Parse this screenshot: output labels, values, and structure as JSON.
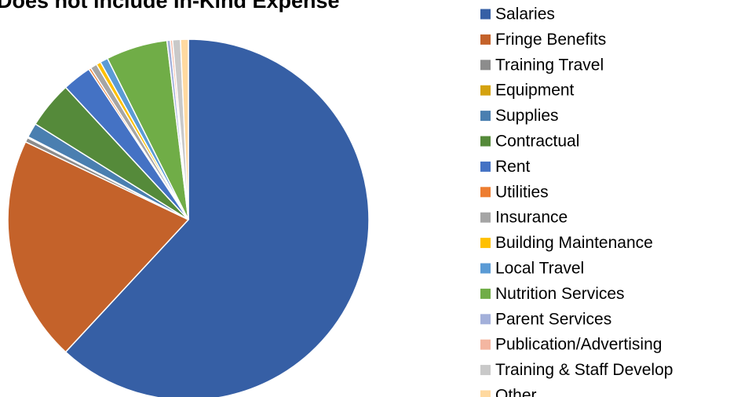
{
  "chart_data": {
    "type": "pie",
    "title": "Does not include In-Kind Expense",
    "categories": [
      "Salaries",
      "Fringe Benefits",
      "Training Travel",
      "Equipment",
      "Supplies",
      "Contractual",
      "Rent",
      "Utilities",
      "Insurance",
      "Building Maintenance",
      "Local Travel",
      "Nutrition Services",
      "Parent Services",
      "Publication/Advertising",
      "Training & Staff Develop",
      "Other"
    ],
    "values": [
      61.9,
      20.2,
      0.4,
      0.1,
      1.3,
      4.2,
      2.6,
      0.2,
      0.6,
      0.4,
      0.7,
      5.5,
      0.3,
      0.2,
      0.7,
      0.7
    ],
    "colors": [
      "#365fa5",
      "#c4622a",
      "#8c8c8c",
      "#d4a20f",
      "#4a7fb0",
      "#558a3a",
      "#4472c4",
      "#ed7d31",
      "#a5a5a5",
      "#ffc000",
      "#5b9bd5",
      "#70ad47",
      "#a3b0da",
      "#f4b6a1",
      "#c9c9c9",
      "#ffd9a0"
    ],
    "legend": "right"
  }
}
